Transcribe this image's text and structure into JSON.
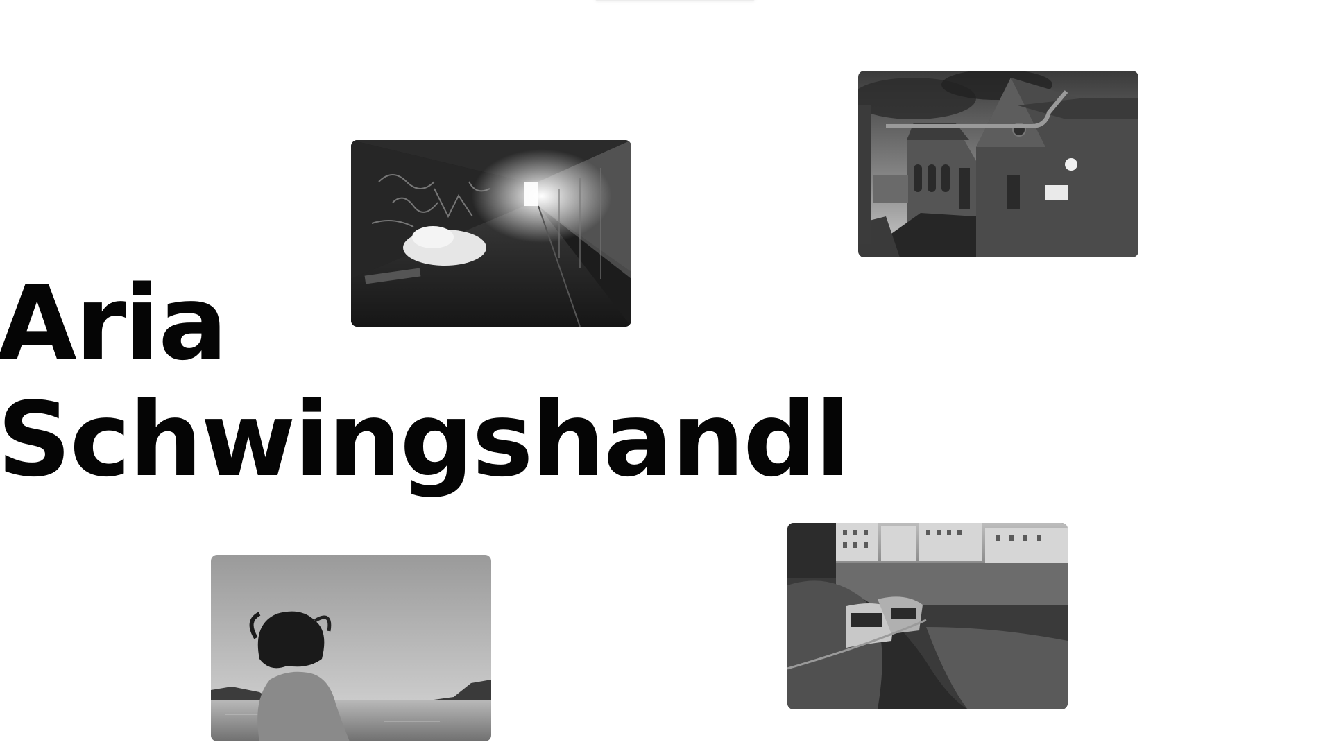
{
  "header": {
    "name_line1": "Aria",
    "name_line2": "Schwingshandl"
  },
  "colors": {
    "background": "#ffffff",
    "title_text": "#050505"
  },
  "gallery": [
    {
      "id": "tunnel",
      "subject": "graffiti pedestrian underpass with a sleeping person under a white blanket",
      "style": "black-and-white"
    },
    {
      "id": "factory",
      "subject": "old brick industrial buildings with an overhead pipe under a cloudy sky",
      "style": "black-and-white"
    },
    {
      "id": "lake",
      "subject": "person with windblown hair looking out over a lake toward hills",
      "style": "black-and-white"
    },
    {
      "id": "trains",
      "subject": "two trains curving along a canal beside a stone wall with city buildings above",
      "style": "black-and-white"
    }
  ]
}
